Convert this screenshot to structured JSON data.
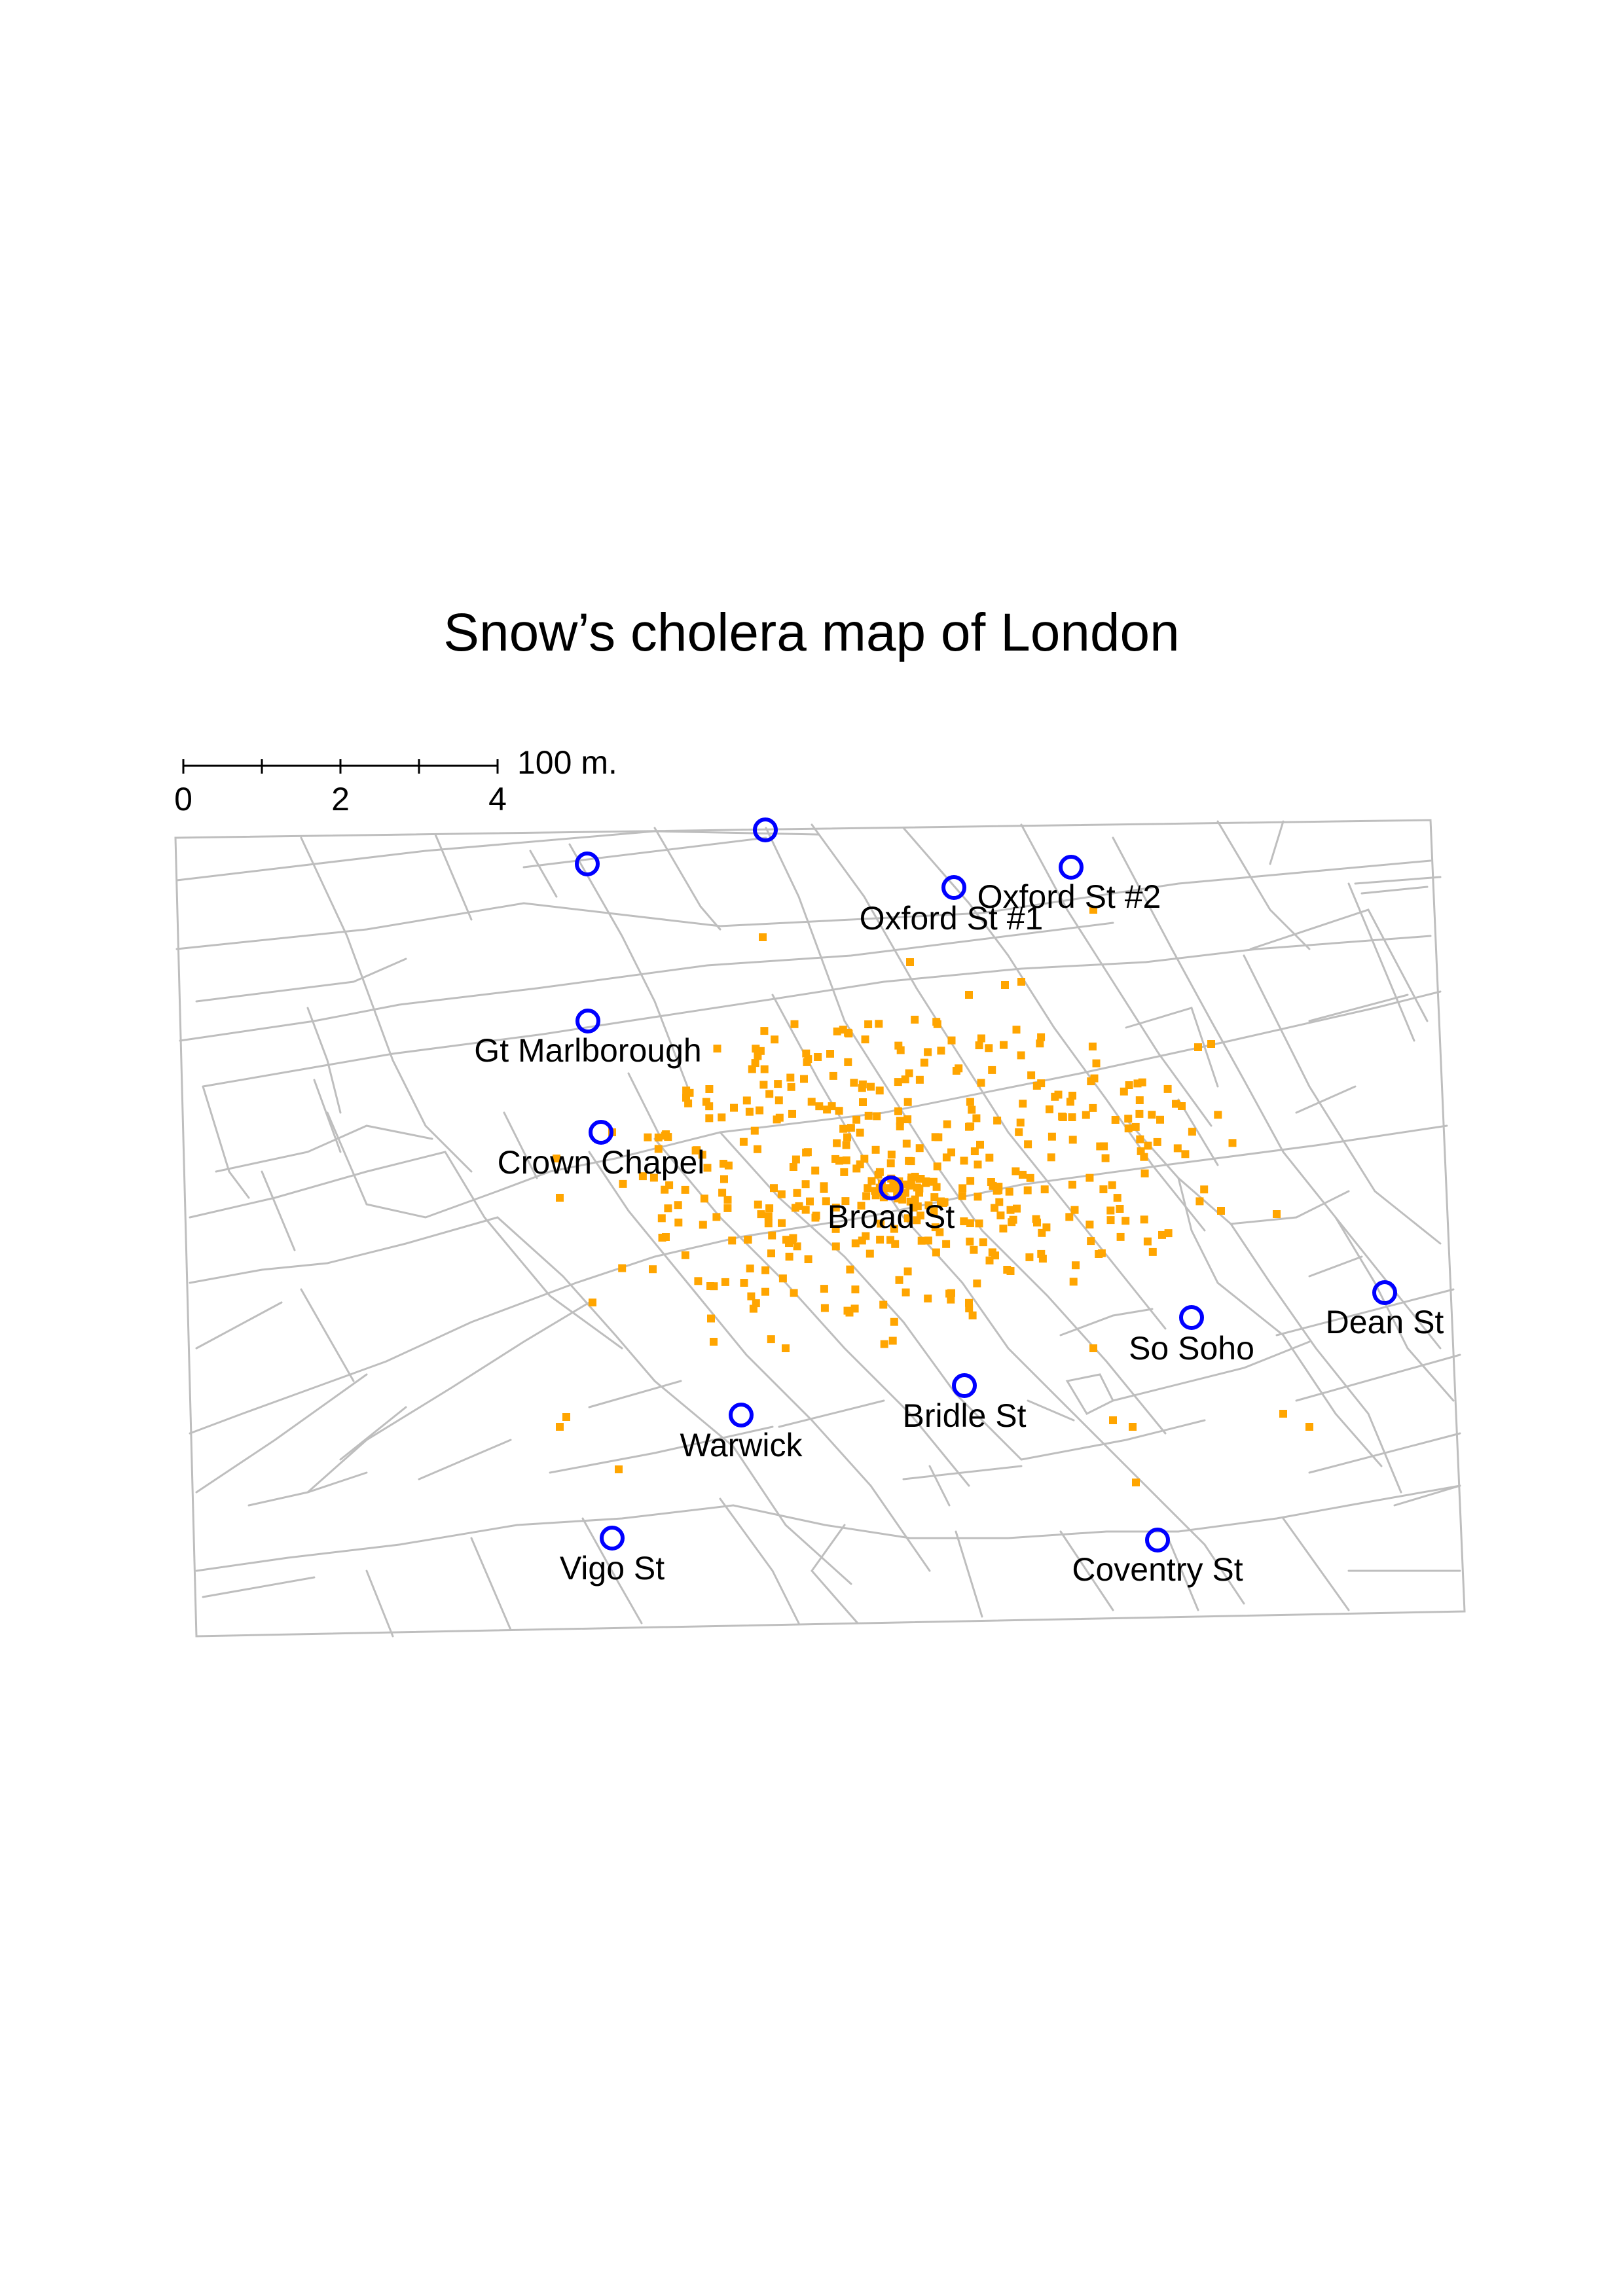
{
  "title": "Snow’s cholera map of London",
  "scale_bar": {
    "tick_labels": [
      "0",
      "2",
      "4"
    ],
    "unit_label": "100 m."
  },
  "colors": {
    "roads": "#bebebe",
    "deaths": "#ffa500",
    "pumps": "#0000ff",
    "frame": "#bebebe"
  },
  "pumps": [
    {
      "label": ""
    },
    {
      "label": ""
    },
    {
      "label": "Oxford St #1"
    },
    {
      "label": "Oxford St #2"
    },
    {
      "label": "Gt Marlborough"
    },
    {
      "label": "Crown Chapel"
    },
    {
      "label": "Broad St"
    },
    {
      "label": "Dean St"
    },
    {
      "label": "So Soho"
    },
    {
      "label": "Bridle St"
    },
    {
      "label": "Warwick"
    },
    {
      "label": "Vigo St"
    },
    {
      "label": "Coventry St"
    }
  ]
}
